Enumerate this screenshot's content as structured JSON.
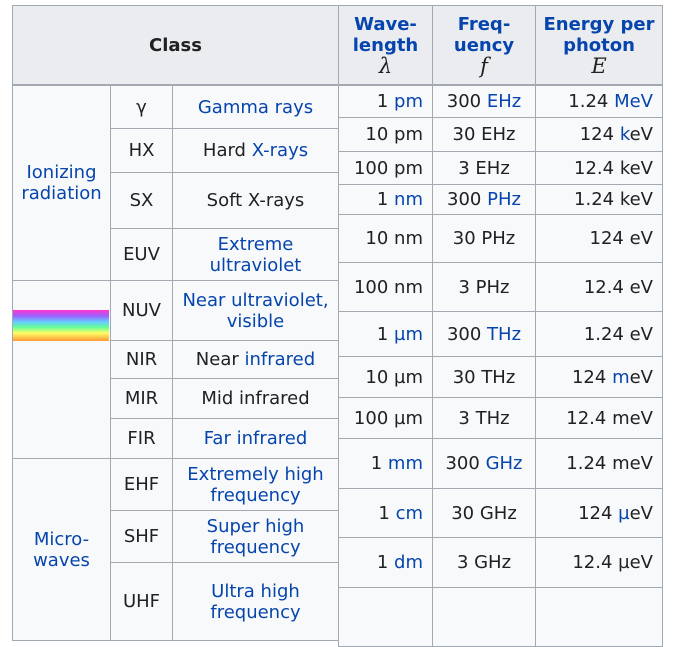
{
  "class_header": "Class",
  "quantity_headers": [
    {
      "lines": [
        "Wave-",
        "length"
      ],
      "symbol": "λ"
    },
    {
      "lines": [
        "Freq-",
        "uency"
      ],
      "symbol": "f"
    },
    {
      "lines": [
        "Energy per",
        "photon"
      ],
      "symbol": "E"
    }
  ],
  "groups": [
    {
      "lines": [
        "Ionizing",
        "radiation"
      ]
    },
    {
      "lines": [
        "Micro-",
        "waves"
      ]
    }
  ],
  "classes": [
    {
      "symbol": "γ",
      "name": [
        {
          "link": "Gamma rays"
        }
      ]
    },
    {
      "symbol": "HX",
      "name": [
        "Hard ",
        {
          "link": "X-rays"
        }
      ]
    },
    {
      "symbol": "SX",
      "name": [
        "Soft X-rays"
      ]
    },
    {
      "symbol": "EUV",
      "name": [
        {
          "link": "Extreme ultraviolet"
        }
      ]
    },
    {
      "symbol": "NUV",
      "name": [
        {
          "link": "Near ultraviolet, visible"
        }
      ]
    },
    {
      "symbol": "NIR",
      "name": [
        "Near ",
        {
          "link": "infrared"
        }
      ]
    },
    {
      "symbol": "MIR",
      "name": [
        "Mid infrared"
      ]
    },
    {
      "symbol": "FIR",
      "name": [
        {
          "link": "Far infrared"
        }
      ]
    },
    {
      "symbol": "EHF",
      "name": [
        {
          "link": "Extremely high frequency"
        }
      ]
    },
    {
      "symbol": "SHF",
      "name": [
        {
          "link": "Super high frequency"
        }
      ]
    },
    {
      "symbol": "UHF",
      "name": [
        {
          "link": "Ultra high frequency"
        }
      ]
    }
  ],
  "quantities": [
    [
      [
        "1 ",
        {
          "link": "pm"
        }
      ],
      [
        "300 ",
        {
          "link": "EHz"
        }
      ],
      [
        "1.24 ",
        {
          "link": "MeV"
        }
      ]
    ],
    [
      [
        "10 pm"
      ],
      [
        "30 EHz"
      ],
      [
        "124 ",
        {
          "link": "k"
        },
        "eV"
      ]
    ],
    [
      [
        "100 pm"
      ],
      [
        "3 EHz"
      ],
      [
        "12.4 keV"
      ]
    ],
    [
      [
        "1 ",
        {
          "link": "nm"
        }
      ],
      [
        "300 ",
        {
          "link": "PHz"
        }
      ],
      [
        "1.24 keV"
      ]
    ],
    [
      [
        "10 nm"
      ],
      [
        "30 PHz"
      ],
      [
        "124 eV"
      ]
    ],
    [
      [
        "100 nm"
      ],
      [
        "3 PHz"
      ],
      [
        "12.4 eV"
      ]
    ],
    [
      [
        "1 ",
        {
          "link": "µm"
        }
      ],
      [
        "300 ",
        {
          "link": "THz"
        }
      ],
      [
        "1.24 eV"
      ]
    ],
    [
      [
        "10 µm"
      ],
      [
        "30 THz"
      ],
      [
        "124 ",
        {
          "link": "m"
        },
        "eV"
      ]
    ],
    [
      [
        "100 µm"
      ],
      [
        "3 THz"
      ],
      [
        "12.4 meV"
      ]
    ],
    [
      [
        "1 ",
        {
          "link": "mm"
        }
      ],
      [
        "300 ",
        {
          "link": "GHz"
        }
      ],
      [
        "1.24 meV"
      ]
    ],
    [
      [
        "1 ",
        {
          "link": "cm"
        }
      ],
      [
        "30 GHz"
      ],
      [
        "124 ",
        {
          "link": "µ"
        },
        "eV"
      ]
    ],
    [
      [
        "1 ",
        {
          "link": "dm"
        }
      ],
      [
        "3 GHz"
      ],
      [
        "12.4 µeV"
      ]
    ]
  ]
}
